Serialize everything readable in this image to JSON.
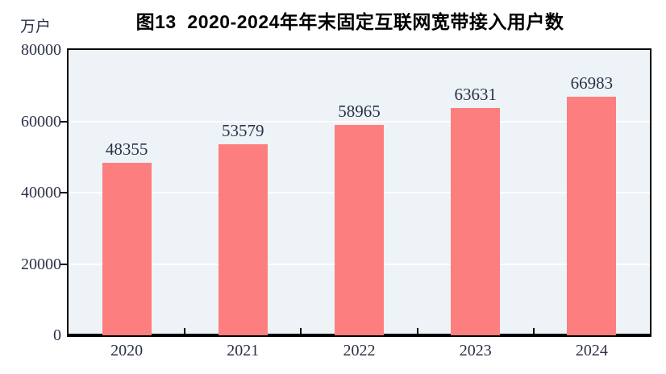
{
  "chart_data": {
    "type": "bar",
    "title": "图13  2020-2024年年末固定互联网宽带接入用户数",
    "unit_label": "万户",
    "categories": [
      "2020",
      "2021",
      "2022",
      "2023",
      "2024"
    ],
    "values": [
      48355,
      53579,
      58965,
      63631,
      66983
    ],
    "ylim": [
      0,
      80000
    ],
    "yticks": [
      0,
      20000,
      40000,
      60000,
      80000
    ],
    "grid": "horizontal white gridlines at interior y-ticks",
    "legend": "none",
    "colors": {
      "bar_fill": "#fd7e7e",
      "plot_background": "#edf3f7",
      "gridline": "#ffffff",
      "axis": "#000000",
      "text": "#2b3247",
      "title_text": "#000000"
    }
  }
}
